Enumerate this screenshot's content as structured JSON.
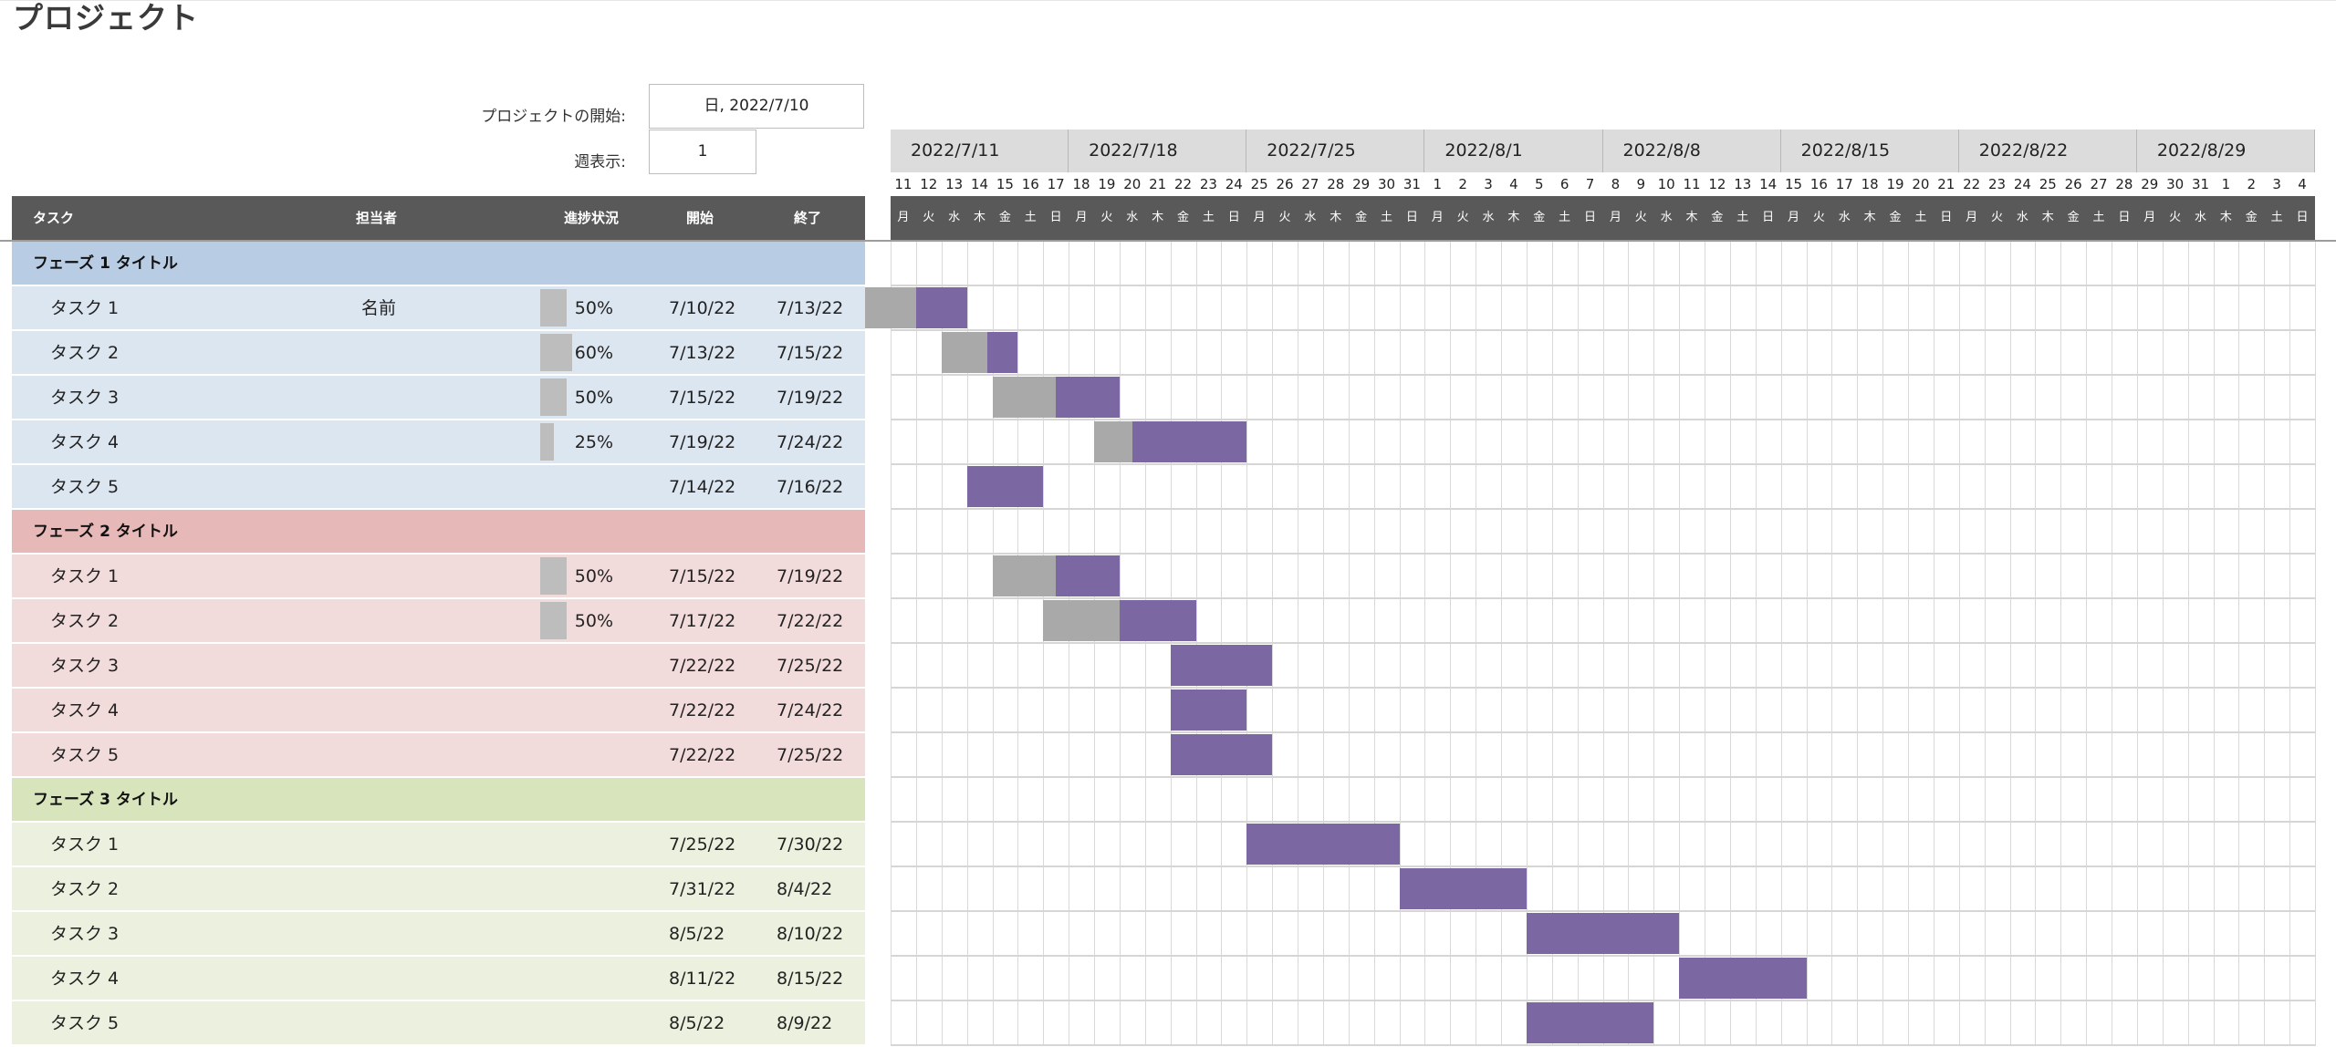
{
  "page": {
    "title": "プロジェクト"
  },
  "fields": {
    "start_label": "プロジェクトの開始:",
    "start_value": "日, 2022/7/10",
    "week_label": "週表示:",
    "week_value": "1"
  },
  "columns": {
    "task": "タスク",
    "owner": "担当者",
    "progress": "進捗状況",
    "start": "開始",
    "end": "終了"
  },
  "weeks": [
    "2022/7/11",
    "2022/7/18",
    "2022/7/25",
    "2022/8/1",
    "2022/8/8",
    "2022/8/15",
    "2022/8/22",
    "2022/8/29"
  ],
  "day_numbers": [
    "11",
    "12",
    "13",
    "14",
    "15",
    "16",
    "17",
    "18",
    "19",
    "20",
    "21",
    "22",
    "23",
    "24",
    "25",
    "26",
    "27",
    "28",
    "29",
    "30",
    "31",
    "1",
    "2",
    "3",
    "4",
    "5",
    "6",
    "7",
    "8",
    "9",
    "10",
    "11",
    "12",
    "13",
    "14",
    "15",
    "16",
    "17",
    "18",
    "19",
    "20",
    "21",
    "22",
    "23",
    "24",
    "25",
    "26",
    "27",
    "28",
    "29",
    "30",
    "31",
    "1",
    "2",
    "3",
    "4"
  ],
  "day_names": [
    "月",
    "火",
    "水",
    "木",
    "金",
    "土",
    "日"
  ],
  "phases": [
    {
      "title": "フェーズ 1 タイトル",
      "colors": {
        "header": "#b8cce4",
        "row": "#dce6f1"
      },
      "tasks": [
        {
          "name": "タスク 1",
          "owner": "名前",
          "progress": 0.5,
          "progress_label": "50%",
          "start": "7/10/22",
          "end": "7/13/22",
          "start_index": -1,
          "days": 4
        },
        {
          "name": "タスク 2",
          "owner": "",
          "progress": 0.6,
          "progress_label": "60%",
          "start": "7/13/22",
          "end": "7/15/22",
          "start_index": 2,
          "days": 3
        },
        {
          "name": "タスク 3",
          "owner": "",
          "progress": 0.5,
          "progress_label": "50%",
          "start": "7/15/22",
          "end": "7/19/22",
          "start_index": 4,
          "days": 5
        },
        {
          "name": "タスク 4",
          "owner": "",
          "progress": 0.25,
          "progress_label": "25%",
          "start": "7/19/22",
          "end": "7/24/22",
          "start_index": 8,
          "days": 6
        },
        {
          "name": "タスク 5",
          "owner": "",
          "progress": 0,
          "progress_label": "",
          "start": "7/14/22",
          "end": "7/16/22",
          "start_index": 3,
          "days": 3
        }
      ]
    },
    {
      "title": "フェーズ 2 タイトル",
      "colors": {
        "header": "#e6b8b7",
        "row": "#f2dcdb"
      },
      "tasks": [
        {
          "name": "タスク 1",
          "owner": "",
          "progress": 0.5,
          "progress_label": "50%",
          "start": "7/15/22",
          "end": "7/19/22",
          "start_index": 4,
          "days": 5
        },
        {
          "name": "タスク 2",
          "owner": "",
          "progress": 0.5,
          "progress_label": "50%",
          "start": "7/17/22",
          "end": "7/22/22",
          "start_index": 6,
          "days": 6
        },
        {
          "name": "タスク 3",
          "owner": "",
          "progress": 0,
          "progress_label": "",
          "start": "7/22/22",
          "end": "7/25/22",
          "start_index": 11,
          "days": 4
        },
        {
          "name": "タスク 4",
          "owner": "",
          "progress": 0,
          "progress_label": "",
          "start": "7/22/22",
          "end": "7/24/22",
          "start_index": 11,
          "days": 3
        },
        {
          "name": "タスク 5",
          "owner": "",
          "progress": 0,
          "progress_label": "",
          "start": "7/22/22",
          "end": "7/25/22",
          "start_index": 11,
          "days": 4
        }
      ]
    },
    {
      "title": "フェーズ 3 タイトル",
      "colors": {
        "header": "#d8e4bc",
        "row": "#ebf1de"
      },
      "tasks": [
        {
          "name": "タスク 1",
          "owner": "",
          "progress": 0,
          "progress_label": "",
          "start": "7/25/22",
          "end": "7/30/22",
          "start_index": 14,
          "days": 6
        },
        {
          "name": "タスク 2",
          "owner": "",
          "progress": 0,
          "progress_label": "",
          "start": "7/31/22",
          "end": "8/4/22",
          "start_index": 20,
          "days": 5
        },
        {
          "name": "タスク 3",
          "owner": "",
          "progress": 0,
          "progress_label": "",
          "start": "8/5/22",
          "end": "8/10/22",
          "start_index": 25,
          "days": 6
        },
        {
          "name": "タスク 4",
          "owner": "",
          "progress": 0,
          "progress_label": "",
          "start": "8/11/22",
          "end": "8/15/22",
          "start_index": 31,
          "days": 5
        },
        {
          "name": "タスク 5",
          "owner": "",
          "progress": 0,
          "progress_label": "",
          "start": "8/5/22",
          "end": "8/9/22",
          "start_index": 25,
          "days": 5
        }
      ]
    }
  ],
  "colors": {
    "done": "#a9a9a9",
    "remaining": "#7b68a3",
    "header": "#595959"
  }
}
